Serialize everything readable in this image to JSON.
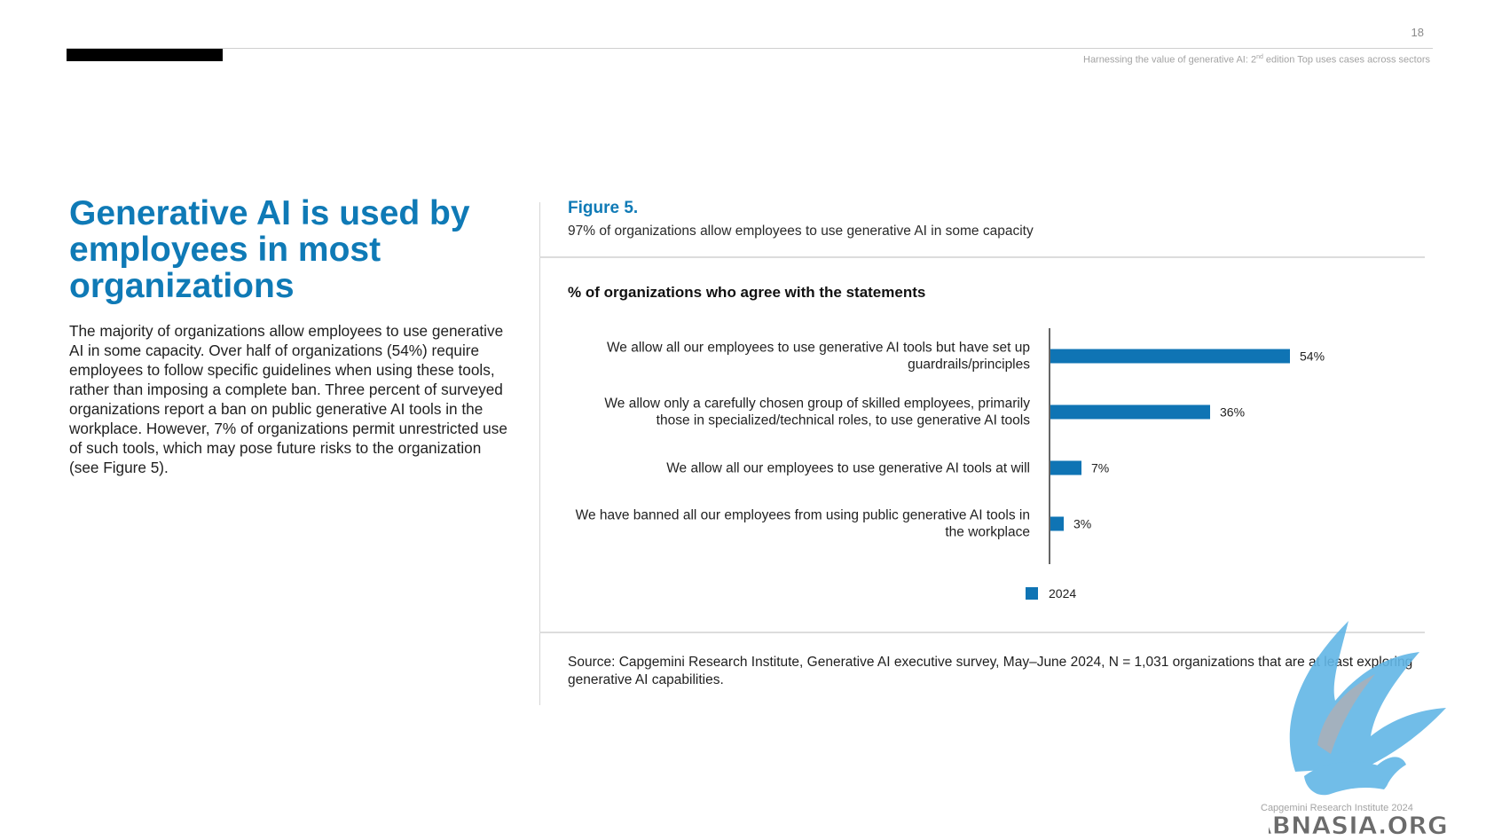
{
  "header": {
    "page_number": "18",
    "running_title_part1": "Harnessing the value of generative AI: 2",
    "running_title_sup": "nd",
    "running_title_part2": " edition Top uses cases across sectors"
  },
  "main": {
    "headline": "Generative AI is used by employees in most organizations",
    "body": "The majority of organizations allow employees to use generative AI in some capacity. Over half of organizations (54%) require employees to follow specific guidelines when using these tools, rather than imposing a complete ban. Three percent of surveyed organizations report a ban on public generative AI tools in the workplace. However, 7% of organizations permit unrestricted use of such tools, which may pose future risks to the organization (see Figure 5)."
  },
  "figure": {
    "label": "Figure 5.",
    "subtitle": "97% of organizations allow employees to use generative AI in some capacity",
    "source": "Source: Capgemini Research Institute, Generative AI executive survey, May–June 2024, N = 1,031 organizations that are at least exploring generative AI capabilities."
  },
  "chart_data": {
    "type": "bar",
    "orientation": "horizontal",
    "title": "% of organizations who agree with the statements",
    "categories": [
      "We allow all our employees to use generative AI tools but have set up guardrails/principles",
      "We allow only a carefully chosen group of skilled employees, primarily those in specialized/technical roles, to use generative AI tools",
      "We allow all our employees to use generative AI tools at will",
      "We have banned all our employees from using public generative AI tools in the workplace"
    ],
    "series": [
      {
        "name": "2024",
        "values": [
          54,
          36,
          7,
          3
        ],
        "color": "#0f74b4"
      }
    ],
    "data_labels": [
      "54%",
      "36%",
      "7%",
      "3%"
    ],
    "xlim": [
      0,
      100
    ],
    "legend": "bottom",
    "grid": false
  },
  "footer": {
    "copyright": "Capgemini Research Institute 2024"
  },
  "watermark": {
    "text": "ABNASIA.ORG"
  }
}
